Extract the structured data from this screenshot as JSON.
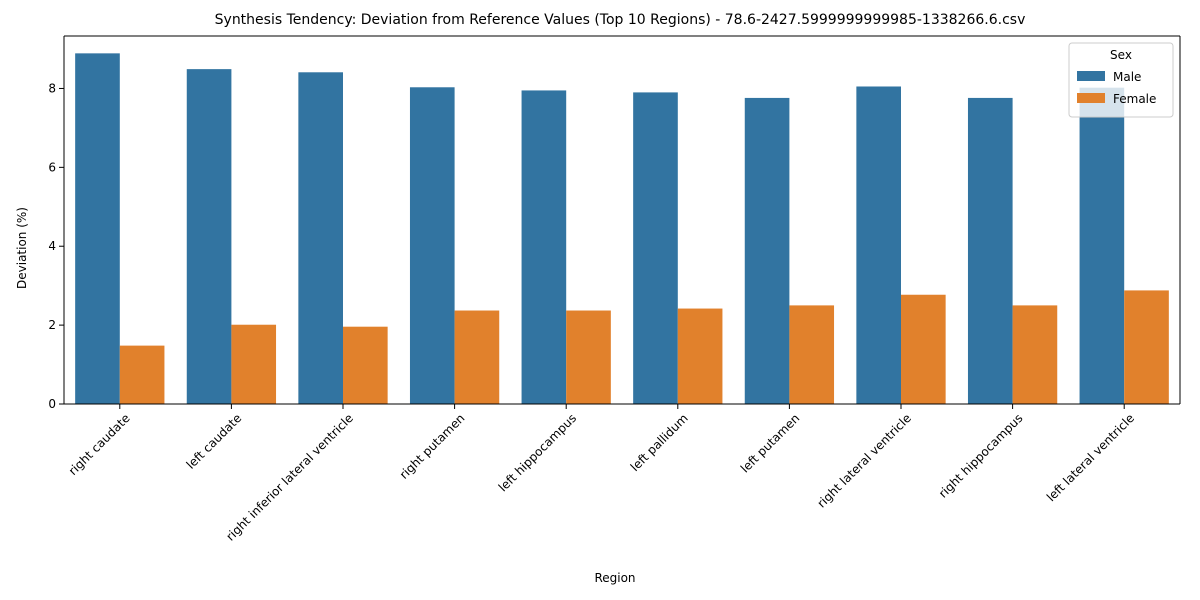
{
  "chart_data": {
    "type": "bar",
    "title": "Synthesis Tendency: Deviation from Reference Values (Top 10 Regions) - 78.6-2427.5999999999985-1338266.6.csv",
    "xlabel": "Region",
    "ylabel": "Deviation (%)",
    "ylim": [
      0,
      9.33
    ],
    "yticks": [
      0,
      2,
      4,
      6,
      8
    ],
    "ytick_labels": [
      "0",
      "2",
      "4",
      "6",
      "8"
    ],
    "grid": false,
    "legend": {
      "title": "Sex",
      "placement": "top-right"
    },
    "categories": [
      "right caudate",
      "left caudate",
      "right inferior lateral ventricle",
      "right putamen",
      "left hippocampus",
      "left pallidum",
      "left putamen",
      "right lateral ventricle",
      "right hippocampus",
      "left lateral ventricle"
    ],
    "series": [
      {
        "name": "Male",
        "color": "#3274a1",
        "values": [
          8.89,
          8.49,
          8.41,
          8.03,
          7.95,
          7.9,
          7.76,
          8.05,
          7.76,
          8.02
        ]
      },
      {
        "name": "Female",
        "color": "#e1812c",
        "values": [
          1.48,
          2.01,
          1.96,
          2.37,
          2.37,
          2.42,
          2.5,
          2.77,
          2.5,
          2.88
        ]
      }
    ]
  }
}
